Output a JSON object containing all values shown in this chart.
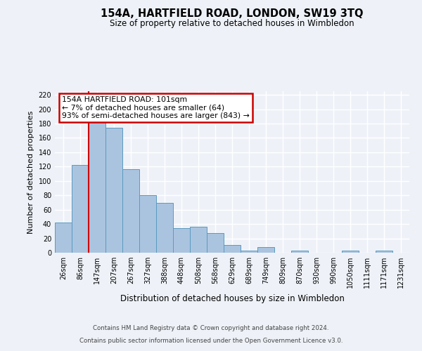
{
  "title": "154A, HARTFIELD ROAD, LONDON, SW19 3TQ",
  "subtitle": "Size of property relative to detached houses in Wimbledon",
  "xlabel": "Distribution of detached houses by size in Wimbledon",
  "ylabel": "Number of detached properties",
  "bar_labels": [
    "26sqm",
    "86sqm",
    "147sqm",
    "207sqm",
    "267sqm",
    "327sqm",
    "388sqm",
    "448sqm",
    "508sqm",
    "568sqm",
    "629sqm",
    "689sqm",
    "749sqm",
    "809sqm",
    "870sqm",
    "930sqm",
    "990sqm",
    "1050sqm",
    "1111sqm",
    "1171sqm",
    "1231sqm"
  ],
  "bar_values": [
    42,
    122,
    184,
    174,
    116,
    80,
    69,
    34,
    36,
    27,
    11,
    3,
    8,
    0,
    3,
    0,
    0,
    3,
    0,
    3,
    0
  ],
  "bar_color": "#aac4e0",
  "bar_edge_color": "#5a9abf",
  "red_line_x": 1.5,
  "annotation_title": "154A HARTFIELD ROAD: 101sqm",
  "annotation_line1": "← 7% of detached houses are smaller (64)",
  "annotation_line2": "93% of semi-detached houses are larger (843) →",
  "annotation_box_color": "#ffffff",
  "annotation_box_edge": "#cc0000",
  "red_line_color": "#cc0000",
  "ylim": [
    0,
    225
  ],
  "yticks": [
    0,
    20,
    40,
    60,
    80,
    100,
    120,
    140,
    160,
    180,
    200,
    220
  ],
  "footer1": "Contains HM Land Registry data © Crown copyright and database right 2024.",
  "footer2": "Contains public sector information licensed under the Open Government Licence v3.0.",
  "bg_color": "#eef2f8",
  "plot_bg_color": "#eef2f8",
  "grid_color": "#ffffff"
}
